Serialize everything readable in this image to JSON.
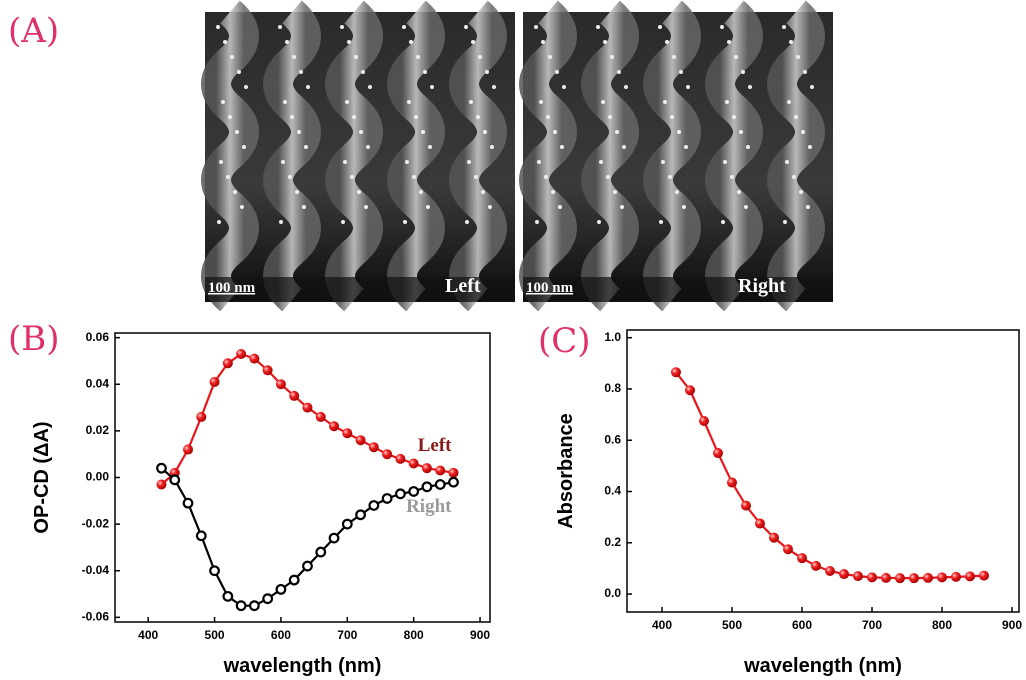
{
  "figure": {
    "label": "(A)",
    "images": [
      {
        "scale": "100 nm",
        "caption": "Left"
      },
      {
        "scale": "100 nm",
        "caption": "Right"
      }
    ]
  },
  "chart_data": [
    {
      "type": "line",
      "label": "(B)",
      "x_label": "wavelength (nm)",
      "y_label": "OP-CD (ΔA)",
      "x": [
        420,
        440,
        460,
        480,
        500,
        520,
        540,
        560,
        580,
        600,
        620,
        640,
        660,
        680,
        700,
        720,
        740,
        760,
        780,
        800,
        820,
        840,
        860
      ],
      "series": [
        {
          "name": "Left",
          "color": "#e8161a",
          "label_color": "#8b1a1a",
          "marker": "filled",
          "values": [
            -0.003,
            0.002,
            0.012,
            0.026,
            0.041,
            0.049,
            0.053,
            0.051,
            0.046,
            0.04,
            0.035,
            0.03,
            0.026,
            0.022,
            0.019,
            0.016,
            0.013,
            0.01,
            0.008,
            0.006,
            0.004,
            0.003,
            0.002
          ]
        },
        {
          "name": "Right",
          "color": "#000000",
          "label_color": "#9a9a9a",
          "marker": "hollow",
          "values": [
            0.004,
            -0.001,
            -0.011,
            -0.025,
            -0.04,
            -0.051,
            -0.055,
            -0.055,
            -0.052,
            -0.048,
            -0.044,
            -0.038,
            -0.032,
            -0.026,
            -0.02,
            -0.016,
            -0.012,
            -0.009,
            -0.007,
            -0.006,
            -0.004,
            -0.003,
            -0.002
          ]
        }
      ],
      "xlim": [
        350,
        915
      ],
      "ylim": [
        -0.062,
        0.062
      ],
      "xticks": [
        400,
        500,
        600,
        700,
        800,
        900
      ],
      "yticks": [
        -0.06,
        -0.04,
        -0.02,
        {
          "value": 0,
          "label": "0.00"
        },
        0.02,
        0.04,
        0.06
      ]
    },
    {
      "type": "line",
      "label": "(C)",
      "x_label": "wavelength (nm)",
      "y_label": "Absorbance",
      "x": [
        420,
        440,
        460,
        480,
        500,
        520,
        540,
        560,
        580,
        600,
        620,
        640,
        660,
        680,
        700,
        720,
        740,
        760,
        780,
        800,
        820,
        840,
        860
      ],
      "series": [
        {
          "name": null,
          "color": "#e8161a",
          "marker": "filled",
          "values": [
            0.865,
            0.795,
            0.675,
            0.55,
            0.435,
            0.345,
            0.275,
            0.22,
            0.175,
            0.14,
            0.11,
            0.09,
            0.078,
            0.07,
            0.065,
            0.063,
            0.062,
            0.062,
            0.063,
            0.065,
            0.067,
            0.069,
            0.072
          ]
        }
      ],
      "xlim": [
        350,
        910
      ],
      "ylim": [
        -0.07,
        1.03
      ],
      "xticks": [
        400,
        500,
        600,
        700,
        800,
        900
      ],
      "yticks": [
        {
          "value": 0,
          "label": "0.0"
        },
        0.2,
        0.4,
        0.6,
        0.8,
        {
          "value": 1,
          "label": "1.0"
        }
      ]
    }
  ]
}
